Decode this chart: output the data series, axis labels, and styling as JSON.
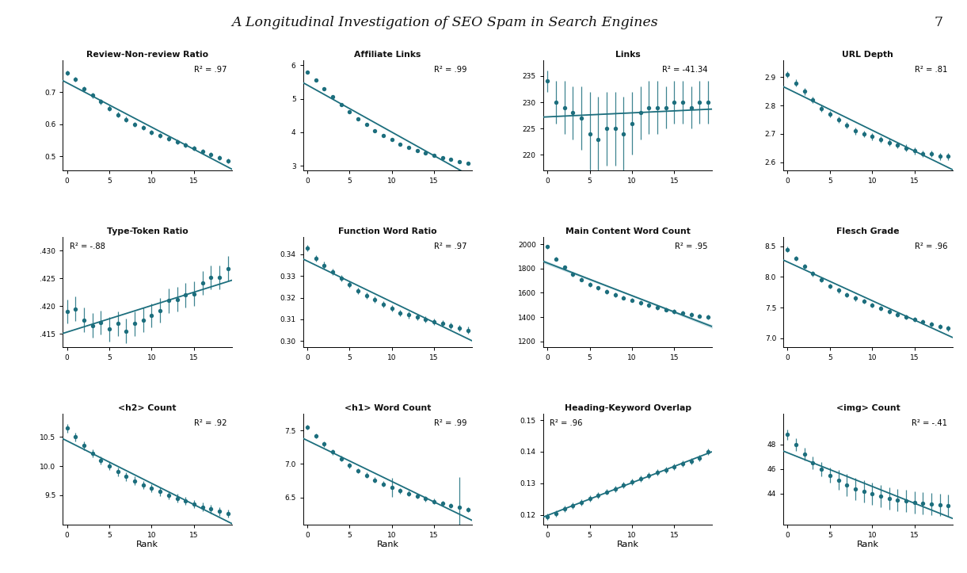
{
  "title": "A Longitudinal Investigation of SEO Spam in Search Engines",
  "page_number": "7",
  "dot_color": "#1c6e7d",
  "line_color": "#1c6e7d",
  "shade_color": "#a8cdd6",
  "background_color": "#ffffff",
  "subplots": [
    {
      "title": "Review-Non-review Ratio",
      "r2": "R² = .97",
      "r2_pos": "upper right",
      "x": [
        0,
        1,
        2,
        3,
        4,
        5,
        6,
        7,
        8,
        9,
        10,
        11,
        12,
        13,
        14,
        15,
        16,
        17,
        18,
        19
      ],
      "y": [
        0.76,
        0.74,
        0.71,
        0.69,
        0.67,
        0.65,
        0.63,
        0.615,
        0.6,
        0.59,
        0.575,
        0.565,
        0.555,
        0.545,
        0.535,
        0.525,
        0.515,
        0.505,
        0.495,
        0.485
      ],
      "yerr": [
        0.008,
        0.008,
        0.008,
        0.008,
        0.008,
        0.008,
        0.008,
        0.008,
        0.008,
        0.008,
        0.008,
        0.008,
        0.008,
        0.008,
        0.008,
        0.008,
        0.008,
        0.008,
        0.008,
        0.008
      ],
      "ylim": [
        0.455,
        0.8
      ],
      "yticks": [
        0.5,
        0.6,
        0.7
      ],
      "yticklabels": [
        "0.5",
        "0.6",
        "0.7"
      ],
      "xlim": [
        -0.5,
        19.5
      ],
      "xlabel": ""
    },
    {
      "title": "Affiliate Links",
      "r2": "R² = .99",
      "r2_pos": "upper right",
      "x": [
        0,
        1,
        2,
        3,
        4,
        5,
        6,
        7,
        8,
        9,
        10,
        11,
        12,
        13,
        14,
        15,
        16,
        17,
        18,
        19
      ],
      "y": [
        5.8,
        5.55,
        5.3,
        5.05,
        4.82,
        4.6,
        4.4,
        4.22,
        4.05,
        3.9,
        3.77,
        3.65,
        3.55,
        3.46,
        3.38,
        3.3,
        3.24,
        3.18,
        3.13,
        3.08
      ],
      "yerr": [
        0.04,
        0.04,
        0.04,
        0.04,
        0.04,
        0.04,
        0.04,
        0.04,
        0.04,
        0.04,
        0.04,
        0.04,
        0.04,
        0.04,
        0.04,
        0.04,
        0.04,
        0.04,
        0.04,
        0.04
      ],
      "ylim": [
        2.85,
        6.15
      ],
      "yticks": [
        3,
        4,
        5,
        6
      ],
      "yticklabels": [
        "3",
        "4",
        "5",
        "6"
      ],
      "xlim": [
        -0.5,
        19.5
      ],
      "xlabel": ""
    },
    {
      "title": "Links",
      "r2": "R² = -41.34",
      "r2_pos": "upper right",
      "x": [
        0,
        1,
        2,
        3,
        4,
        5,
        6,
        7,
        8,
        9,
        10,
        11,
        12,
        13,
        14,
        15,
        16,
        17,
        18,
        19
      ],
      "y": [
        234,
        230,
        229,
        228,
        227,
        224,
        223,
        225,
        225,
        224,
        226,
        228,
        229,
        229,
        229,
        230,
        230,
        229,
        230,
        230
      ],
      "yerr": [
        2,
        4,
        5,
        5,
        6,
        8,
        8,
        7,
        7,
        7,
        6,
        5,
        5,
        5,
        4,
        4,
        4,
        4,
        4,
        4
      ],
      "ylim": [
        217,
        238
      ],
      "yticks": [
        220,
        225,
        230,
        235
      ],
      "yticklabels": [
        "220",
        "225",
        "230",
        "235"
      ],
      "xlim": [
        -0.5,
        19.5
      ],
      "xlabel": ""
    },
    {
      "title": "URL Depth",
      "r2": "R² = .81",
      "r2_pos": "upper right",
      "x": [
        0,
        1,
        2,
        3,
        4,
        5,
        6,
        7,
        8,
        9,
        10,
        11,
        12,
        13,
        14,
        15,
        16,
        17,
        18,
        19
      ],
      "y": [
        2.91,
        2.88,
        2.85,
        2.82,
        2.79,
        2.77,
        2.75,
        2.73,
        2.71,
        2.7,
        2.69,
        2.68,
        2.67,
        2.66,
        2.65,
        2.64,
        2.63,
        2.63,
        2.62,
        2.62
      ],
      "yerr": [
        0.012,
        0.012,
        0.012,
        0.012,
        0.012,
        0.012,
        0.012,
        0.012,
        0.012,
        0.012,
        0.012,
        0.012,
        0.012,
        0.012,
        0.012,
        0.012,
        0.012,
        0.012,
        0.012,
        0.012
      ],
      "ylim": [
        2.57,
        2.96
      ],
      "yticks": [
        2.6,
        2.7,
        2.8,
        2.9
      ],
      "yticklabels": [
        "2.6",
        "2.7",
        "2.8",
        "2.9"
      ],
      "xlim": [
        -0.5,
        19.5
      ],
      "xlabel": ""
    },
    {
      "title": "Type-Token Ratio",
      "r2": "R² = -.88",
      "r2_pos": "upper left",
      "x": [
        0,
        1,
        2,
        3,
        4,
        5,
        6,
        7,
        8,
        9,
        10,
        11,
        12,
        13,
        14,
        15,
        16,
        17,
        18,
        19
      ],
      "y": [
        0.419,
        0.4195,
        0.4175,
        0.4165,
        0.417,
        0.4158,
        0.4168,
        0.4155,
        0.4168,
        0.4175,
        0.4183,
        0.4192,
        0.421,
        0.4212,
        0.422,
        0.4222,
        0.4242,
        0.4252,
        0.4252,
        0.4268
      ],
      "yerr": [
        0.0022,
        0.0022,
        0.0022,
        0.0022,
        0.0022,
        0.0022,
        0.0022,
        0.0022,
        0.0022,
        0.0022,
        0.0022,
        0.0022,
        0.0022,
        0.0022,
        0.0022,
        0.0022,
        0.0022,
        0.0022,
        0.0022,
        0.0022
      ],
      "ylim": [
        0.4125,
        0.4325
      ],
      "yticks": [
        0.415,
        0.42,
        0.425,
        0.43
      ],
      "yticklabels": [
        ".415",
        ".420",
        ".425",
        ".430"
      ],
      "xlim": [
        -0.5,
        19.5
      ],
      "xlabel": ""
    },
    {
      "title": "Function Word Ratio",
      "r2": "R² = .97",
      "r2_pos": "upper right",
      "x": [
        0,
        1,
        2,
        3,
        4,
        5,
        6,
        7,
        8,
        9,
        10,
        11,
        12,
        13,
        14,
        15,
        16,
        17,
        18,
        19
      ],
      "y": [
        0.343,
        0.338,
        0.335,
        0.332,
        0.329,
        0.326,
        0.323,
        0.321,
        0.319,
        0.317,
        0.315,
        0.313,
        0.312,
        0.311,
        0.31,
        0.309,
        0.308,
        0.307,
        0.306,
        0.305
      ],
      "yerr": [
        0.0015,
        0.0015,
        0.0015,
        0.0015,
        0.0015,
        0.0015,
        0.0015,
        0.0015,
        0.0015,
        0.0015,
        0.0015,
        0.0015,
        0.0015,
        0.0015,
        0.0015,
        0.0015,
        0.0015,
        0.0015,
        0.0015,
        0.0015
      ],
      "ylim": [
        0.297,
        0.348
      ],
      "yticks": [
        0.3,
        0.31,
        0.32,
        0.33,
        0.34
      ],
      "yticklabels": [
        "0.30",
        "0.31",
        "0.32",
        "0.33",
        "0.34"
      ],
      "xlim": [
        -0.5,
        19.5
      ],
      "xlabel": ""
    },
    {
      "title": "Main Content Word Count",
      "r2": "R² = .95",
      "r2_pos": "upper right",
      "x": [
        0,
        1,
        2,
        3,
        4,
        5,
        6,
        7,
        8,
        9,
        10,
        11,
        12,
        13,
        14,
        15,
        16,
        17,
        18,
        19
      ],
      "y": [
        1980,
        1880,
        1810,
        1755,
        1710,
        1670,
        1640,
        1610,
        1585,
        1560,
        1540,
        1520,
        1500,
        1480,
        1462,
        1445,
        1432,
        1420,
        1410,
        1400
      ],
      "yerr": [
        18,
        18,
        18,
        18,
        18,
        18,
        18,
        18,
        18,
        18,
        18,
        18,
        18,
        18,
        18,
        18,
        18,
        18,
        18,
        18
      ],
      "ylim": [
        1150,
        2060
      ],
      "yticks": [
        1200,
        1400,
        1600,
        1800,
        2000
      ],
      "yticklabels": [
        "1200",
        "1400",
        "1600",
        "1800",
        "2000"
      ],
      "xlim": [
        -0.5,
        19.5
      ],
      "xlabel": ""
    },
    {
      "title": "Flesch Grade",
      "r2": "R² = .96",
      "r2_pos": "upper right",
      "x": [
        0,
        1,
        2,
        3,
        4,
        5,
        6,
        7,
        8,
        9,
        10,
        11,
        12,
        13,
        14,
        15,
        16,
        17,
        18,
        19
      ],
      "y": [
        8.45,
        8.3,
        8.17,
        8.05,
        7.95,
        7.85,
        7.78,
        7.71,
        7.65,
        7.6,
        7.54,
        7.49,
        7.44,
        7.39,
        7.35,
        7.31,
        7.27,
        7.23,
        7.19,
        7.16
      ],
      "yerr": [
        0.04,
        0.04,
        0.04,
        0.04,
        0.04,
        0.04,
        0.04,
        0.04,
        0.04,
        0.04,
        0.04,
        0.04,
        0.04,
        0.04,
        0.04,
        0.04,
        0.04,
        0.04,
        0.04,
        0.04
      ],
      "ylim": [
        6.85,
        8.65
      ],
      "yticks": [
        7.0,
        7.5,
        8.0,
        8.5
      ],
      "yticklabels": [
        "7.0",
        "7.5",
        "8.0",
        "8.5"
      ],
      "xlim": [
        -0.5,
        19.5
      ],
      "xlabel": ""
    },
    {
      "title": "<h2> Count",
      "r2": "R² = .92",
      "r2_pos": "upper right",
      "x": [
        0,
        1,
        2,
        3,
        4,
        5,
        6,
        7,
        8,
        9,
        10,
        11,
        12,
        13,
        14,
        15,
        16,
        17,
        18,
        19
      ],
      "y": [
        10.65,
        10.5,
        10.35,
        10.22,
        10.1,
        10.0,
        9.9,
        9.82,
        9.75,
        9.68,
        9.62,
        9.56,
        9.5,
        9.45,
        9.4,
        9.35,
        9.3,
        9.26,
        9.22,
        9.18
      ],
      "yerr": [
        0.07,
        0.07,
        0.07,
        0.07,
        0.07,
        0.07,
        0.07,
        0.07,
        0.07,
        0.07,
        0.07,
        0.07,
        0.07,
        0.07,
        0.07,
        0.07,
        0.07,
        0.07,
        0.07,
        0.07
      ],
      "ylim": [
        9.0,
        10.9
      ],
      "yticks": [
        9.5,
        10.0,
        10.5
      ],
      "yticklabels": [
        "9.5",
        "10.0",
        "10.5"
      ],
      "xlim": [
        -0.5,
        19.5
      ],
      "xlabel": "Rank"
    },
    {
      "title": "<h1> Word Count",
      "r2": "R² = .99",
      "r2_pos": "upper right",
      "x": [
        0,
        1,
        2,
        3,
        4,
        5,
        6,
        7,
        8,
        9,
        10,
        11,
        12,
        13,
        14,
        15,
        16,
        17,
        18,
        19
      ],
      "y": [
        7.55,
        7.42,
        7.3,
        7.18,
        7.08,
        6.98,
        6.9,
        6.83,
        6.76,
        6.7,
        6.65,
        6.6,
        6.56,
        6.52,
        6.48,
        6.44,
        6.41,
        6.38,
        6.35,
        6.32
      ],
      "yerr": [
        0.04,
        0.04,
        0.04,
        0.04,
        0.04,
        0.04,
        0.04,
        0.04,
        0.04,
        0.04,
        0.14,
        0.04,
        0.04,
        0.04,
        0.04,
        0.04,
        0.04,
        0.04,
        0.45,
        0.04
      ],
      "ylim": [
        6.1,
        7.75
      ],
      "yticks": [
        6.5,
        7.0,
        7.5
      ],
      "yticklabels": [
        "6.5",
        "7.0",
        "7.5"
      ],
      "xlim": [
        -0.5,
        19.5
      ],
      "xlabel": "Rank"
    },
    {
      "title": "Heading-Keyword Overlap",
      "r2": "R² = .96",
      "r2_pos": "upper left",
      "x": [
        0,
        1,
        2,
        3,
        4,
        5,
        6,
        7,
        8,
        9,
        10,
        11,
        12,
        13,
        14,
        15,
        16,
        17,
        18,
        19
      ],
      "y": [
        0.1195,
        0.1205,
        0.1218,
        0.1228,
        0.124,
        0.1252,
        0.1262,
        0.1273,
        0.1283,
        0.1294,
        0.1304,
        0.1314,
        0.1324,
        0.1334,
        0.1343,
        0.1352,
        0.1361,
        0.137,
        0.1379,
        0.14
      ],
      "yerr": [
        0.001,
        0.001,
        0.001,
        0.001,
        0.001,
        0.001,
        0.001,
        0.001,
        0.001,
        0.001,
        0.001,
        0.001,
        0.001,
        0.001,
        0.001,
        0.001,
        0.001,
        0.001,
        0.001,
        0.001
      ],
      "ylim": [
        0.117,
        0.152
      ],
      "yticks": [
        0.12,
        0.13,
        0.14,
        0.15
      ],
      "yticklabels": [
        "0.12",
        "0.13",
        "0.14",
        "0.15"
      ],
      "xlim": [
        -0.5,
        19.5
      ],
      "xlabel": "Rank"
    },
    {
      "title": "<img> Count",
      "r2": "R² = -.41",
      "r2_pos": "upper right",
      "x": [
        0,
        1,
        2,
        3,
        4,
        5,
        6,
        7,
        8,
        9,
        10,
        11,
        12,
        13,
        14,
        15,
        16,
        17,
        18,
        19
      ],
      "y": [
        48.8,
        48.0,
        47.2,
        46.5,
        46.0,
        45.5,
        45.1,
        44.7,
        44.4,
        44.2,
        44.0,
        43.8,
        43.6,
        43.5,
        43.4,
        43.3,
        43.2,
        43.15,
        43.1,
        43.0
      ],
      "yerr": [
        0.4,
        0.5,
        0.5,
        0.5,
        0.6,
        0.6,
        0.8,
        0.9,
        0.9,
        0.9,
        0.9,
        0.9,
        0.9,
        0.9,
        0.9,
        0.9,
        0.9,
        0.9,
        0.9,
        0.9
      ],
      "ylim": [
        41.5,
        50.5
      ],
      "yticks": [
        44,
        46,
        48
      ],
      "yticklabels": [
        "44",
        "46",
        "48"
      ],
      "xlim": [
        -0.5,
        19.5
      ],
      "xlabel": "Rank"
    }
  ]
}
